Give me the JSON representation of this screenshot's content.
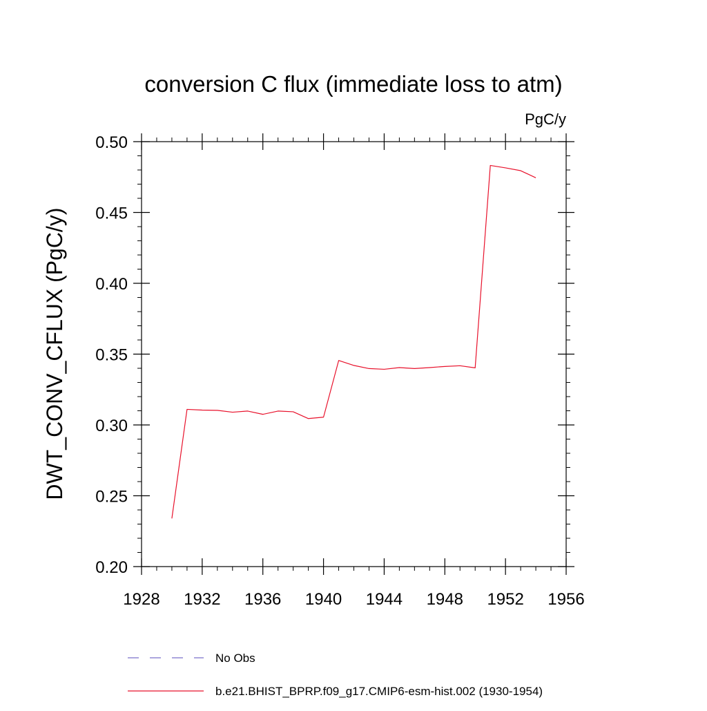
{
  "chart_data": {
    "type": "line",
    "title": "conversion C flux (immediate loss to atm)",
    "units_label": "PgC/y",
    "ylabel": "DWT_CONV_CFLUX  (PgC/y)",
    "xlabel": "",
    "xlim": [
      1928,
      1956
    ],
    "ylim": [
      0.2,
      0.5
    ],
    "x_ticks": [
      1928,
      1932,
      1936,
      1940,
      1944,
      1948,
      1952,
      1956
    ],
    "x_tick_labels": [
      "1928",
      "1932",
      "1936",
      "1940",
      "1944",
      "1948",
      "1952",
      "1956"
    ],
    "y_ticks": [
      0.2,
      0.25,
      0.3,
      0.35,
      0.4,
      0.45,
      0.5
    ],
    "y_tick_labels": [
      "0.20",
      "0.25",
      "0.30",
      "0.35",
      "0.40",
      "0.45",
      "0.50"
    ],
    "grid": false,
    "legend_position": "bottom",
    "series": [
      {
        "name": "b.e21.BHIST_BPRP.f09_g17.CMIP6-esm-hist.002 (1930-1954)",
        "color": "#e8102a",
        "style": "solid",
        "x": [
          1930,
          1931,
          1932,
          1933,
          1934,
          1935,
          1936,
          1937,
          1938,
          1939,
          1940,
          1941,
          1942,
          1943,
          1944,
          1945,
          1946,
          1947,
          1948,
          1949,
          1950,
          1951,
          1952,
          1953,
          1954
        ],
        "values": [
          0.234,
          0.311,
          0.3105,
          0.3103,
          0.309,
          0.3098,
          0.3075,
          0.3098,
          0.3093,
          0.3045,
          0.3055,
          0.3455,
          0.342,
          0.3398,
          0.3393,
          0.3405,
          0.3398,
          0.3405,
          0.3413,
          0.3418,
          0.3403,
          0.4832,
          0.4815,
          0.4795,
          0.4745
        ]
      }
    ],
    "legend": [
      {
        "label": "No Obs",
        "color": "#7b6fc9",
        "style": "dashed"
      },
      {
        "label": "b.e21.BHIST_BPRP.f09_g17.CMIP6-esm-hist.002 (1930-1954)",
        "color": "#e8102a",
        "style": "solid"
      }
    ]
  }
}
